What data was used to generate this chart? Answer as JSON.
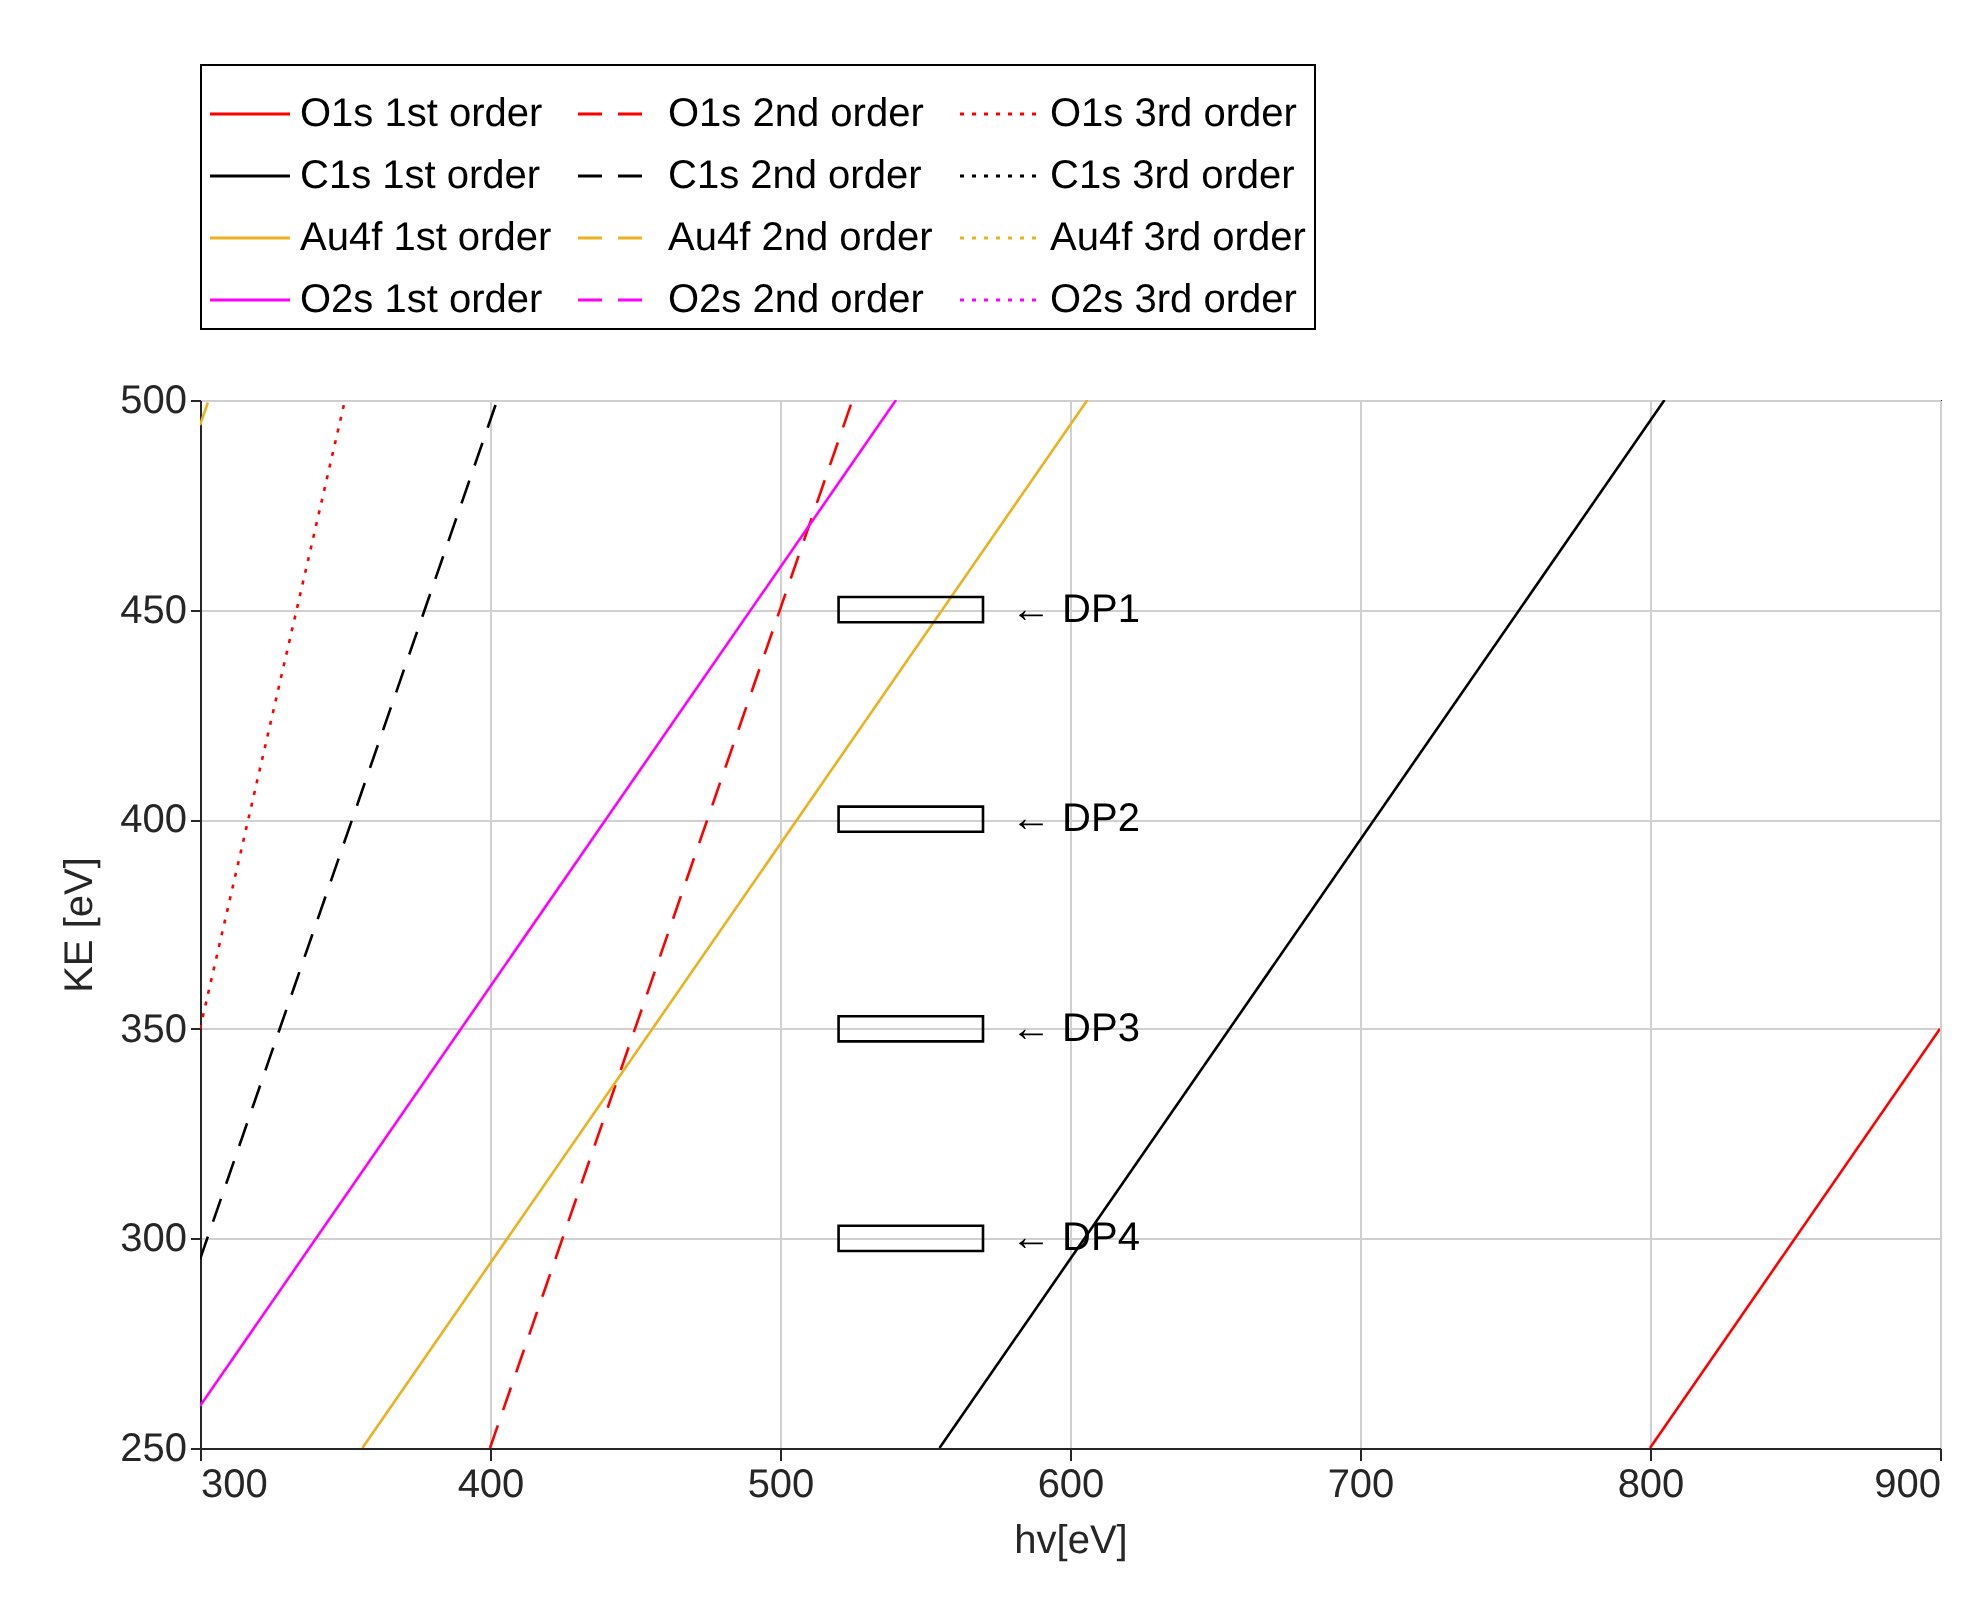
{
  "chart_data": {
    "type": "line",
    "xlabel": "hv[eV]",
    "ylabel": "KE [eV]",
    "xlim": [
      300,
      900
    ],
    "ylim": [
      250,
      500
    ],
    "xticks": [
      300,
      400,
      500,
      600,
      700,
      800,
      900
    ],
    "yticks": [
      250,
      300,
      350,
      400,
      450,
      500
    ],
    "grid": true,
    "legend": "top",
    "marker": "none",
    "series": [
      {
        "name": "O1s 1st order",
        "color": "#ff0000",
        "line_style": "solid",
        "x": [
          800,
          900
        ],
        "values": [
          250,
          350
        ]
      },
      {
        "name": "O1s 2nd order",
        "color": "#ff0000",
        "line_style": "dashed",
        "x": [
          400,
          525
        ],
        "values": [
          250,
          500
        ]
      },
      {
        "name": "O1s 3rd order",
        "color": "#ff0000",
        "line_style": "dotted",
        "x": [
          300,
          350
        ],
        "values": [
          350,
          500
        ]
      },
      {
        "name": "C1s 1st order",
        "color": "#000000",
        "line_style": "solid",
        "x": [
          555,
          805
        ],
        "values": [
          250,
          500
        ]
      },
      {
        "name": "C1s 2nd order",
        "color": "#000000",
        "line_style": "dashed",
        "x": [
          300,
          402.5
        ],
        "values": [
          295,
          500
        ]
      },
      {
        "name": "C1s 3rd order",
        "color": "#000000",
        "line_style": "dotted"
      },
      {
        "name": "Au4f 1st order",
        "color": "#edb120",
        "line_style": "solid",
        "x": [
          356,
          606
        ],
        "values": [
          250,
          500
        ]
      },
      {
        "name": "Au4f 2nd order",
        "color": "#edb120",
        "line_style": "dashed",
        "x": [
          300,
          303
        ],
        "values": [
          494,
          500
        ]
      },
      {
        "name": "Au4f 3rd order",
        "color": "#edb120",
        "line_style": "dotted"
      },
      {
        "name": "O2s 1st order",
        "color": "#ff00ff",
        "line_style": "solid",
        "x": [
          300,
          540
        ],
        "values": [
          260,
          500
        ]
      },
      {
        "name": "O2s 2nd order",
        "color": "#ff00ff",
        "line_style": "dashed"
      },
      {
        "name": "O2s 3rd order",
        "color": "#ff00ff",
        "line_style": "dotted"
      }
    ],
    "annotations": [
      "← DP1",
      "← DP2",
      "← DP3",
      "← DP4"
    ]
  }
}
